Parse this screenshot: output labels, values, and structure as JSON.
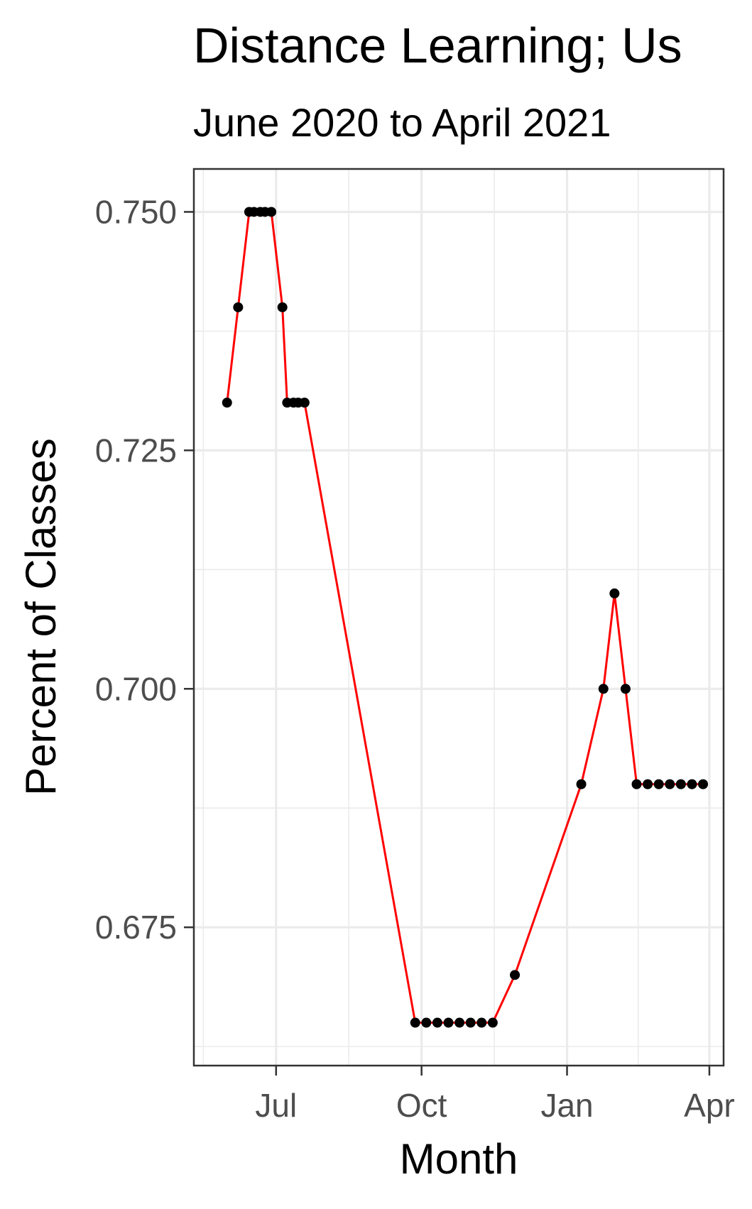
{
  "chart_data": {
    "type": "line",
    "title": "Distance Learning; Us",
    "subtitle": "June 2020 to April 2021",
    "xlabel": "Month",
    "ylabel": "Percent of Classes",
    "x_ticks": [
      {
        "label": "Jul",
        "date": "2020-07-01"
      },
      {
        "label": "Oct",
        "date": "2020-10-01"
      },
      {
        "label": "Jan",
        "date": "2021-01-01"
      },
      {
        "label": "Apr",
        "date": "2021-04-01"
      }
    ],
    "y_ticks": [
      "0.675",
      "0.700",
      "0.725",
      "0.750"
    ],
    "xlim": [
      "2020-05-10",
      "2021-04-10"
    ],
    "ylim": [
      0.6605,
      0.7545
    ],
    "grid": true,
    "colors": {
      "line": "#ff0000",
      "points": "#000000",
      "grid": "#ebebeb",
      "panel_border": "#333333"
    },
    "series": [
      {
        "x": [
          "2020-05-31",
          "2020-06-07",
          "2020-06-14",
          "2020-06-17",
          "2020-06-21",
          "2020-06-24",
          "2020-06-28",
          "2020-07-05",
          "2020-07-08",
          "2020-07-12",
          "2020-07-15",
          "2020-07-19",
          "2020-09-27",
          "2020-10-04",
          "2020-10-11",
          "2020-10-18",
          "2020-10-25",
          "2020-11-01",
          "2020-11-08",
          "2020-11-15",
          "2020-11-29",
          "2021-01-10",
          "2021-01-24",
          "2021-01-31",
          "2021-02-07",
          "2021-02-14",
          "2021-02-21",
          "2021-02-28",
          "2021-03-07",
          "2021-03-14",
          "2021-03-21",
          "2021-03-28"
        ],
        "values": [
          0.73,
          0.74,
          0.75,
          0.75,
          0.75,
          0.75,
          0.75,
          0.74,
          0.73,
          0.73,
          0.73,
          0.73,
          0.665,
          0.665,
          0.665,
          0.665,
          0.665,
          0.665,
          0.665,
          0.665,
          0.67,
          0.69,
          0.7,
          0.71,
          0.7,
          0.69,
          0.69,
          0.69,
          0.69,
          0.69,
          0.69,
          0.69
        ]
      }
    ]
  }
}
